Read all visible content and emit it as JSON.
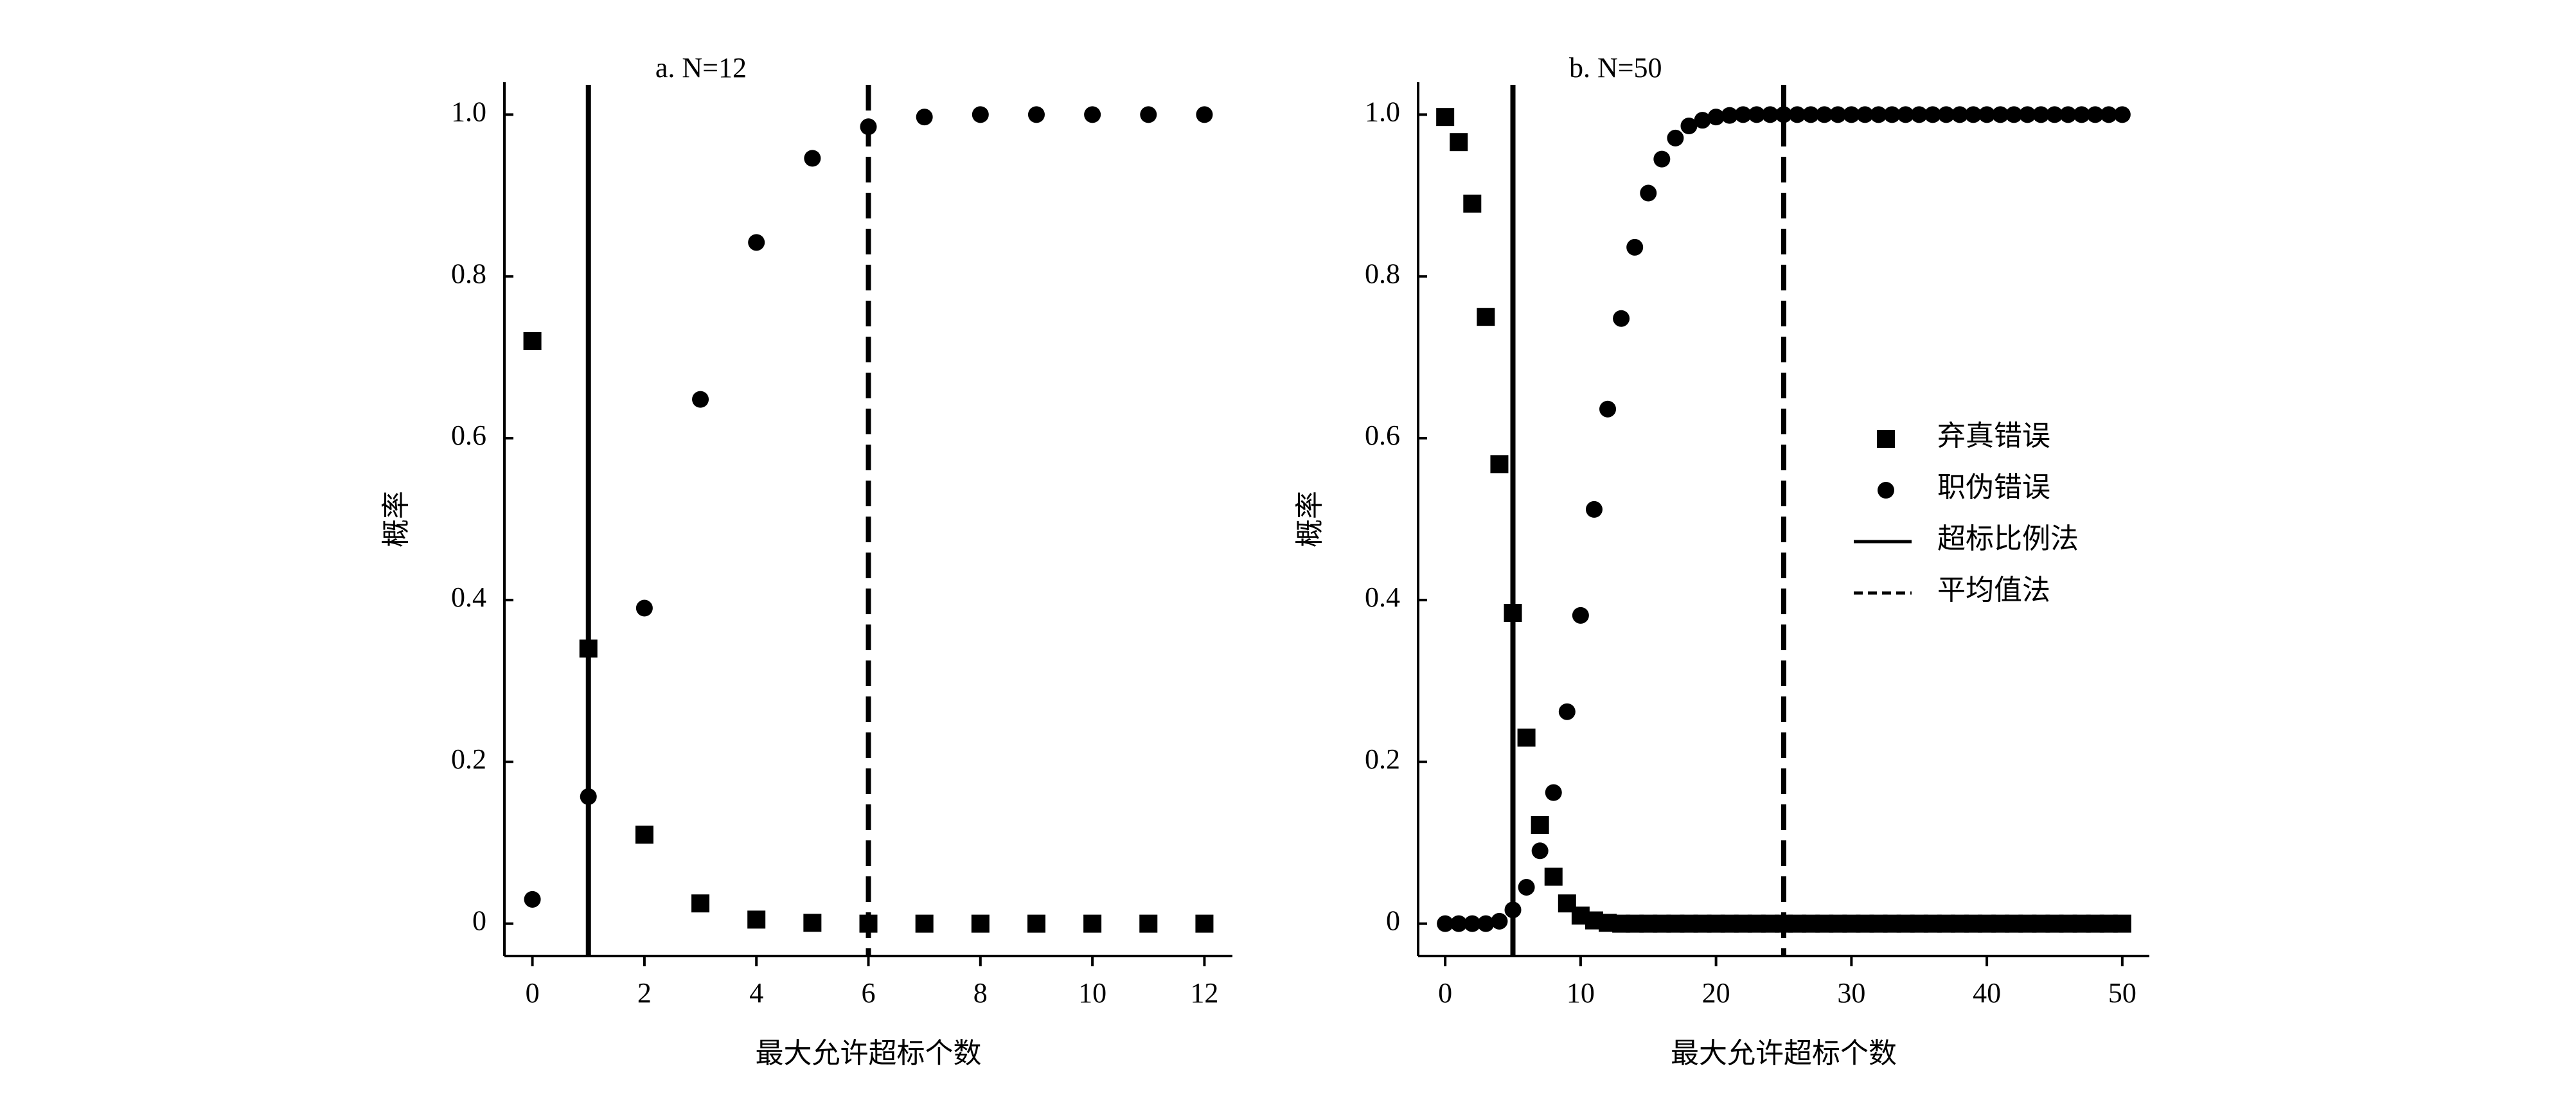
{
  "chart_data": [
    {
      "type": "scatter",
      "title": "a. N=12",
      "x_label": "最大允许超标个数",
      "y_label": "概率",
      "x": [
        0,
        1,
        2,
        3,
        4,
        5,
        6,
        7,
        8,
        9,
        10,
        11,
        12
      ],
      "series": [
        {
          "marker": "square",
          "color": "#000000",
          "values": [
            0.72,
            0.34,
            0.11,
            0.025,
            0.005,
            0.001,
            0,
            0,
            0,
            0,
            0,
            0,
            0
          ]
        },
        {
          "marker": "circle",
          "color": "#000000",
          "values": [
            0.03,
            0.157,
            0.39,
            0.648,
            0.842,
            0.946,
            0.985,
            0.997,
            1,
            1,
            1,
            1,
            1
          ]
        }
      ],
      "vlines": [
        {
          "x": 1,
          "style": "solid",
          "color": "#000000"
        },
        {
          "x": 6,
          "style": "dashed",
          "color": "#000000"
        }
      ],
      "xlim": [
        -0.5,
        12.5
      ],
      "ylim": [
        -0.04,
        1.04
      ],
      "xticks": [
        0,
        2,
        4,
        6,
        8,
        10,
        12
      ],
      "yticks": [
        0,
        0.2,
        0.4,
        0.6,
        0.8,
        {
          "value": 1,
          "label": "1.0"
        }
      ],
      "legend": false
    },
    {
      "type": "scatter",
      "title": "b. N=50",
      "x_label": "最大允许超标个数",
      "y_label": "概率",
      "x": [
        0,
        1,
        2,
        3,
        4,
        5,
        6,
        7,
        8,
        9,
        10,
        11,
        12,
        13,
        14,
        15,
        16,
        17,
        18,
        19,
        20,
        21,
        22,
        23,
        24,
        25,
        26,
        27,
        28,
        29,
        30,
        31,
        32,
        33,
        34,
        35,
        36,
        37,
        38,
        39,
        40,
        41,
        42,
        43,
        44,
        45,
        46,
        47,
        48,
        49,
        50
      ],
      "series": [
        {
          "name": "弃真错误",
          "marker": "square",
          "color": "#000000",
          "values": [
            0.997,
            0.966,
            0.89,
            0.75,
            0.568,
            0.384,
            0.23,
            0.122,
            0.058,
            0.025,
            0.01,
            0.004,
            0.001,
            0,
            0,
            0,
            0,
            0,
            0,
            0,
            0,
            0,
            0,
            0,
            0,
            0,
            0,
            0,
            0,
            0,
            0,
            0,
            0,
            0,
            0,
            0,
            0,
            0,
            0,
            0,
            0,
            0,
            0,
            0,
            0,
            0,
            0,
            0,
            0,
            0,
            0
          ]
        },
        {
          "name": "职伪错误",
          "marker": "circle",
          "color": "#000000",
          "values": [
            0,
            0,
            0,
            0,
            0.003,
            0.017,
            0.045,
            0.09,
            0.162,
            0.262,
            0.381,
            0.512,
            0.636,
            0.748,
            0.836,
            0.903,
            0.945,
            0.971,
            0.986,
            0.993,
            0.997,
            0.999,
            1,
            1,
            1,
            1,
            1,
            1,
            1,
            1,
            1,
            1,
            1,
            1,
            1,
            1,
            1,
            1,
            1,
            1,
            1,
            1,
            1,
            1,
            1,
            1,
            1,
            1,
            1,
            1,
            1
          ]
        }
      ],
      "vlines": [
        {
          "name": "超标比例法",
          "x": 5,
          "style": "solid",
          "color": "#000000"
        },
        {
          "name": "平均值法",
          "x": 25,
          "style": "dashed",
          "color": "#000000"
        }
      ],
      "xlim": [
        -2,
        52
      ],
      "ylim": [
        -0.04,
        1.04
      ],
      "xticks": [
        0,
        10,
        20,
        30,
        40,
        50
      ],
      "yticks": [
        0,
        0.2,
        0.4,
        0.6,
        0.8,
        {
          "value": 1,
          "label": "1.0"
        }
      ],
      "legend": true
    }
  ]
}
